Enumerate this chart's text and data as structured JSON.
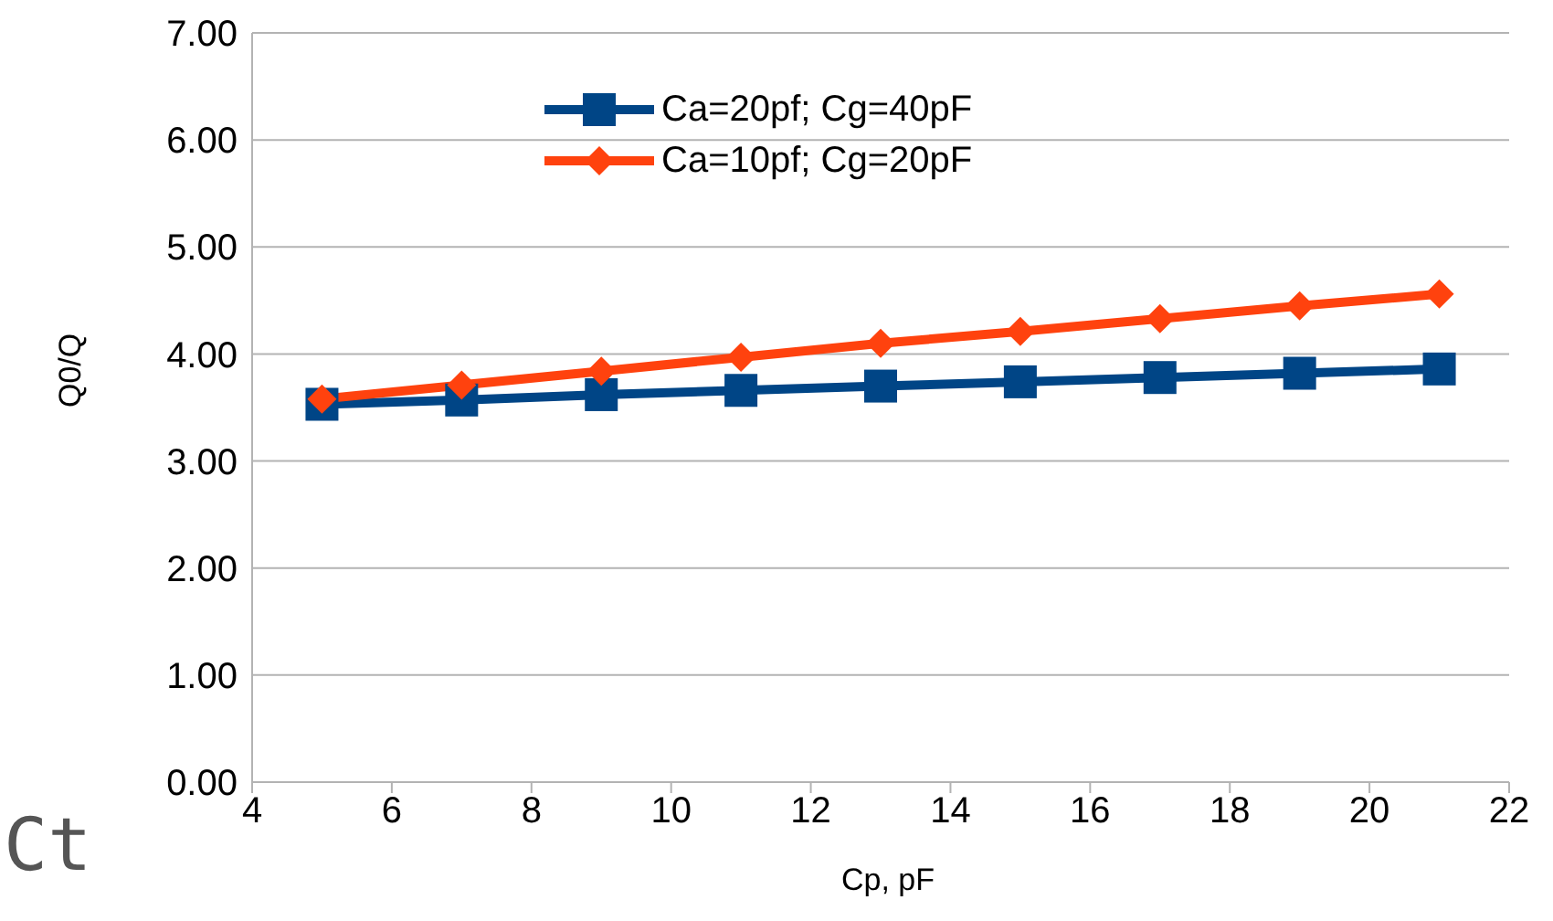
{
  "chart_data": {
    "type": "line",
    "xlabel": "Cp, pF",
    "ylabel": "Q0/Q",
    "x": [
      5,
      7,
      9,
      11,
      13,
      15,
      17,
      19,
      21
    ],
    "series": [
      {
        "name": "Ca=20pf; Cg=40pF",
        "color": "#004586",
        "marker": "square",
        "values": [
          3.53,
          3.57,
          3.62,
          3.66,
          3.7,
          3.74,
          3.78,
          3.82,
          3.86
        ]
      },
      {
        "name": "Ca=10pf; Cg=20pF",
        "color": "#ff420e",
        "marker": "diamond",
        "values": [
          3.58,
          3.71,
          3.84,
          3.97,
          4.1,
          4.21,
          4.33,
          4.45,
          4.56
        ]
      }
    ],
    "xlim": [
      4,
      22
    ],
    "xticks": [
      4,
      6,
      8,
      10,
      12,
      14,
      16,
      18,
      20,
      22
    ],
    "ylim": [
      0,
      7
    ],
    "yticks": [
      {
        "value": 0,
        "label": "0.00"
      },
      {
        "value": 1,
        "label": "1.00"
      },
      {
        "value": 2,
        "label": "2.00"
      },
      {
        "value": 3,
        "label": "3.00"
      },
      {
        "value": 4,
        "label": "4.00"
      },
      {
        "value": 5,
        "label": "5.00"
      },
      {
        "value": 6,
        "label": "6.00"
      },
      {
        "value": 7,
        "label": "7.00"
      }
    ],
    "grid": "y",
    "legend": "top",
    "line_style": "solid",
    "annotations": [
      "Ct"
    ]
  }
}
